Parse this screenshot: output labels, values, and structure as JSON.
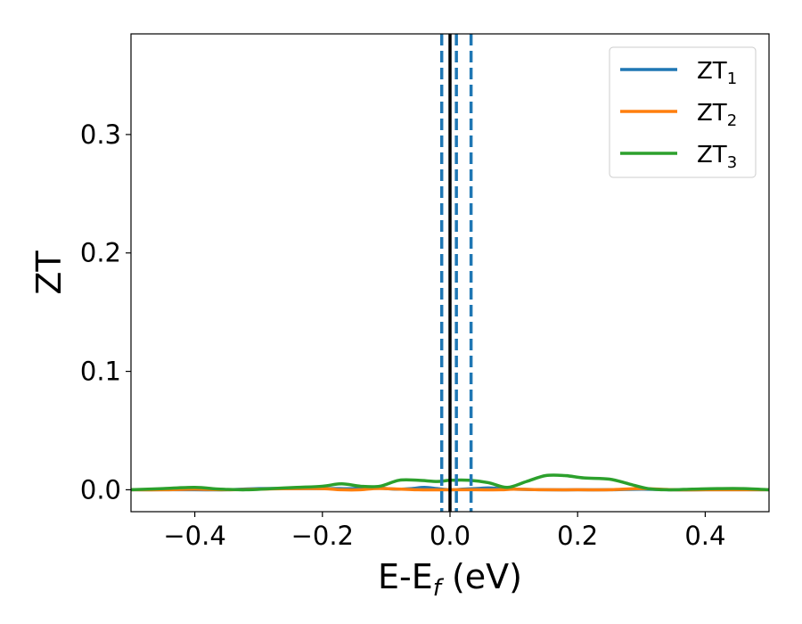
{
  "chart_data": {
    "type": "line",
    "xlabel": {
      "main": "E-E",
      "sub": "f",
      "unit": " (eV)"
    },
    "ylabel": "ZT",
    "xlim": [
      -0.5,
      0.5
    ],
    "ylim": [
      -0.0185,
      0.385
    ],
    "xticks": [
      -0.4,
      -0.2,
      0.0,
      0.2,
      0.4
    ],
    "xtick_labels": [
      "−0.4",
      "−0.2",
      "0.0",
      "0.2",
      "0.4"
    ],
    "yticks": [
      0.0,
      0.1,
      0.2,
      0.3
    ],
    "ytick_labels": [
      "0.0",
      "0.1",
      "0.2",
      "0.3"
    ],
    "grid": false,
    "legend_position": "top-right",
    "series": [
      {
        "name": "ZT",
        "name_sub": "1",
        "color": "#1f77b4",
        "x": [
          -0.5,
          -0.45,
          -0.4,
          -0.35,
          -0.3,
          -0.25,
          -0.2,
          -0.15,
          -0.12,
          -0.1,
          -0.08,
          -0.06,
          -0.04,
          -0.02,
          0.0,
          0.02,
          0.04,
          0.06,
          0.08,
          0.1,
          0.15,
          0.2,
          0.25,
          0.3,
          0.35,
          0.4,
          0.45,
          0.5
        ],
        "y": [
          0.0,
          0.0,
          0.0,
          0.0,
          0.001,
          0.001,
          0.001,
          0.001,
          0.002,
          0.001,
          0.0005,
          0.001,
          0.002,
          0.001,
          0.0,
          0.0005,
          0.001,
          0.0015,
          0.001,
          0.0005,
          0.0,
          0.0,
          0.0,
          0.0005,
          0.0,
          0.0,
          0.0,
          0.0
        ]
      },
      {
        "name": "ZT",
        "name_sub": "2",
        "color": "#ff7f0e",
        "x": [
          -0.5,
          -0.45,
          -0.4,
          -0.35,
          -0.3,
          -0.25,
          -0.2,
          -0.17,
          -0.14,
          -0.12,
          -0.1,
          -0.05,
          0.0,
          0.04,
          0.08,
          0.1,
          0.15,
          0.2,
          0.25,
          0.3,
          0.35,
          0.4,
          0.45,
          0.5
        ],
        "y": [
          0.0,
          0.0,
          0.0005,
          0.0,
          0.0005,
          0.001,
          0.001,
          0.0,
          0.0,
          0.001,
          0.001,
          0.0,
          0.0,
          0.0,
          0.0,
          0.0005,
          0.0,
          0.0,
          0.0,
          0.001,
          0.0,
          0.0,
          0.0,
          0.0
        ]
      },
      {
        "name": "ZT",
        "name_sub": "3",
        "color": "#2ca02c",
        "x": [
          -0.5,
          -0.45,
          -0.4,
          -0.36,
          -0.32,
          -0.28,
          -0.24,
          -0.2,
          -0.17,
          -0.14,
          -0.11,
          -0.08,
          -0.05,
          -0.02,
          0.0,
          0.03,
          0.06,
          0.09,
          0.12,
          0.15,
          0.18,
          0.21,
          0.25,
          0.28,
          0.31,
          0.34,
          0.38,
          0.42,
          0.46,
          0.5
        ],
        "y": [
          0.0,
          0.001,
          0.002,
          0.0005,
          0.0,
          0.001,
          0.002,
          0.003,
          0.005,
          0.003,
          0.003,
          0.008,
          0.008,
          0.007,
          0.008,
          0.008,
          0.006,
          0.002,
          0.007,
          0.012,
          0.012,
          0.01,
          0.009,
          0.005,
          0.001,
          0.0,
          0.0005,
          0.001,
          0.001,
          0.0
        ]
      }
    ],
    "vlines": [
      {
        "x": 0.0,
        "color": "#000000",
        "style": "solid"
      },
      {
        "x": -0.013,
        "color": "#1f77b4",
        "style": "dashed"
      },
      {
        "x": 0.01,
        "color": "#1f77b4",
        "style": "dashed"
      },
      {
        "x": 0.033,
        "color": "#1f77b4",
        "style": "dashed"
      }
    ]
  }
}
